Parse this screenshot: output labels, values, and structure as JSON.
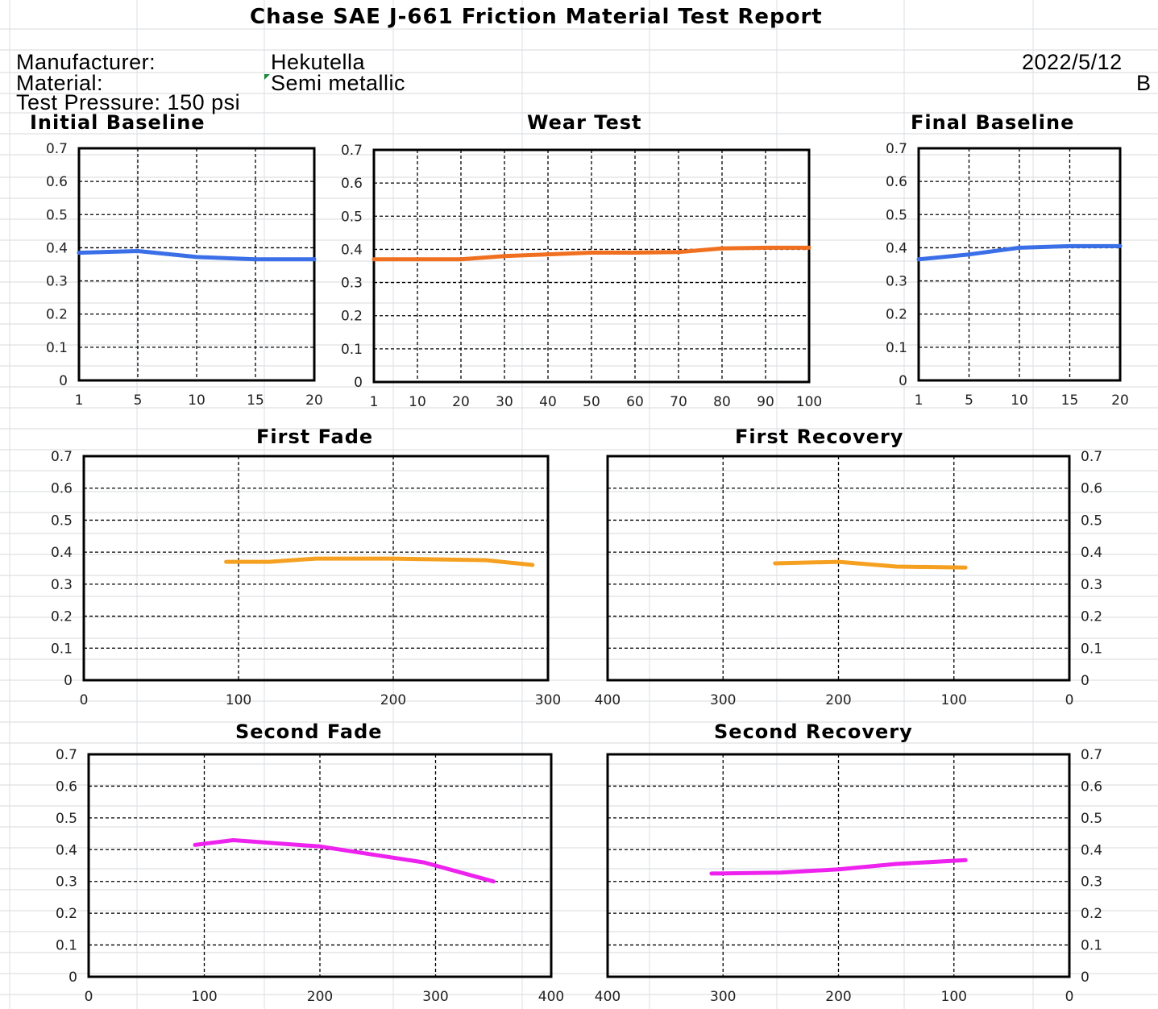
{
  "report": {
    "title": "Chase SAE J-661 Friction Material Test Report",
    "manufacturer_label": "Manufacturer:",
    "manufacturer_value": "Hekutella",
    "date": "2022/5/12",
    "material_label": "Material:",
    "material_value": "Semi metallic",
    "grade": "B",
    "pressure_label": "Test Pressure: 150 psi"
  },
  "colors": {
    "baseline": "#3a6fe8",
    "wear": "#f07020",
    "first": "#f5a020",
    "second": "#ee22ee"
  },
  "chart_data": [
    {
      "id": "initial-baseline",
      "type": "line",
      "title": "Initial Baseline",
      "x_axis": "category",
      "categories": [
        "1",
        "5",
        "10",
        "15",
        "20"
      ],
      "xlim": [
        1,
        20
      ],
      "ylim": [
        0,
        0.7
      ],
      "yticks": [
        "0",
        "0.1",
        "0.2",
        "0.3",
        "0.4",
        "0.5",
        "0.6",
        "0.7"
      ],
      "grid": true,
      "series": [
        {
          "color": "baseline",
          "x": [
            1,
            5,
            10,
            15,
            20
          ],
          "y": [
            0.385,
            0.39,
            0.372,
            0.365,
            0.365
          ]
        }
      ]
    },
    {
      "id": "wear-test",
      "type": "line",
      "title": "Wear Test",
      "x_axis": "category",
      "categories": [
        "1",
        "10",
        "20",
        "30",
        "40",
        "50",
        "60",
        "70",
        "80",
        "90",
        "100"
      ],
      "xlim": [
        1,
        100
      ],
      "ylim": [
        0,
        0.7
      ],
      "yticks": [
        "0",
        "0.1",
        "0.2",
        "0.3",
        "0.4",
        "0.5",
        "0.6",
        "0.7"
      ],
      "grid": true,
      "series": [
        {
          "color": "wear",
          "x": [
            1,
            10,
            20,
            30,
            40,
            50,
            60,
            70,
            80,
            90,
            100
          ],
          "y": [
            0.37,
            0.37,
            0.37,
            0.38,
            0.385,
            0.39,
            0.39,
            0.392,
            0.403,
            0.405,
            0.405
          ]
        }
      ]
    },
    {
      "id": "final-baseline",
      "type": "line",
      "title": "Final Baseline",
      "x_axis": "category",
      "categories": [
        "1",
        "5",
        "10",
        "15",
        "20"
      ],
      "xlim": [
        1,
        20
      ],
      "ylim": [
        0,
        0.7
      ],
      "yticks": [
        "0",
        "0.1",
        "0.2",
        "0.3",
        "0.4",
        "0.5",
        "0.6",
        "0.7"
      ],
      "grid": true,
      "series": [
        {
          "color": "baseline",
          "x": [
            1,
            5,
            10,
            15,
            20
          ],
          "y": [
            0.365,
            0.38,
            0.4,
            0.405,
            0.405
          ]
        }
      ]
    },
    {
      "id": "first-fade",
      "type": "line",
      "title": "First Fade",
      "x_axis": "numeric",
      "xticks": [
        0,
        100,
        200,
        300
      ],
      "xlim": [
        0,
        300
      ],
      "ylim": [
        0,
        0.7
      ],
      "yticks": [
        "0",
        "0.1",
        "0.2",
        "0.3",
        "0.4",
        "0.5",
        "0.6",
        "0.7"
      ],
      "yaxis_side": "left",
      "grid": true,
      "series": [
        {
          "color": "first",
          "x": [
            92,
            120,
            150,
            200,
            260,
            290
          ],
          "y": [
            0.37,
            0.37,
            0.38,
            0.38,
            0.375,
            0.36
          ]
        }
      ]
    },
    {
      "id": "first-recovery",
      "type": "line",
      "title": "First Recovery",
      "x_axis": "numeric",
      "xticks": [
        400,
        300,
        200,
        100,
        0
      ],
      "xlim": [
        400,
        0
      ],
      "ylim": [
        0,
        0.7
      ],
      "yticks": [
        "0",
        "0.1",
        "0.2",
        "0.3",
        "0.4",
        "0.5",
        "0.6",
        "0.7"
      ],
      "yaxis_side": "right",
      "grid": true,
      "series": [
        {
          "color": "first",
          "x": [
            255,
            200,
            150,
            90
          ],
          "y": [
            0.365,
            0.37,
            0.355,
            0.352
          ]
        }
      ]
    },
    {
      "id": "second-fade",
      "type": "line",
      "title": "Second Fade",
      "x_axis": "numeric",
      "xticks": [
        0,
        100,
        200,
        300,
        400
      ],
      "xlim": [
        0,
        400
      ],
      "ylim": [
        0,
        0.7
      ],
      "yticks": [
        "0",
        "0.1",
        "0.2",
        "0.3",
        "0.4",
        "0.5",
        "0.6",
        "0.7"
      ],
      "yaxis_side": "left",
      "grid": true,
      "series": [
        {
          "color": "second",
          "x": [
            92,
            125,
            200,
            290,
            350
          ],
          "y": [
            0.415,
            0.43,
            0.41,
            0.36,
            0.3
          ]
        }
      ]
    },
    {
      "id": "second-recovery",
      "type": "line",
      "title": "Second Recovery",
      "x_axis": "numeric",
      "xticks": [
        400,
        300,
        200,
        100,
        0
      ],
      "xlim": [
        400,
        0
      ],
      "ylim": [
        0,
        0.7
      ],
      "yticks": [
        "0",
        "0.1",
        "0.2",
        "0.3",
        "0.4",
        "0.5",
        "0.6",
        "0.7"
      ],
      "yaxis_side": "right",
      "grid": true,
      "series": [
        {
          "color": "second",
          "x": [
            310,
            250,
            200,
            150,
            90
          ],
          "y": [
            0.325,
            0.328,
            0.338,
            0.355,
            0.367
          ]
        }
      ]
    }
  ]
}
